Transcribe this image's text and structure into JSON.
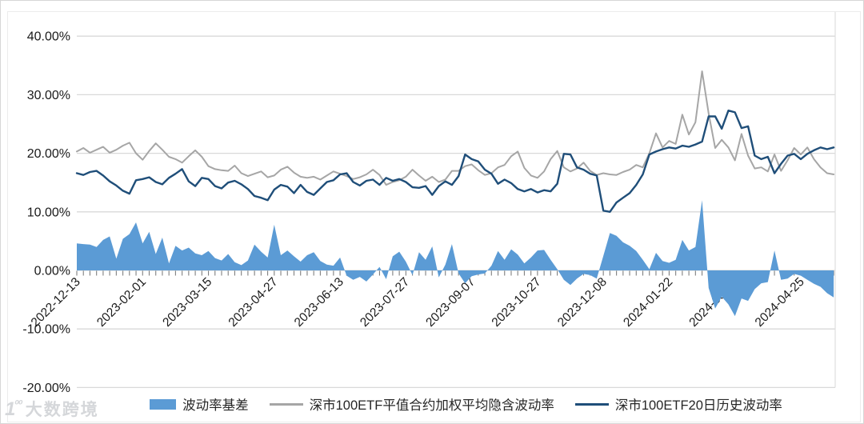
{
  "watermark": {
    "logo_text": "100",
    "brand": "大数跨境"
  },
  "chart_data": {
    "type": "combo",
    "title": "",
    "grid": "horizontal",
    "legend_position": "bottom",
    "y_unit": "%",
    "ylim": [
      -20,
      40
    ],
    "y_tick_labels": [
      "40.00%",
      "30.00%",
      "20.00%",
      "10.00%",
      "0.00%",
      "-10.00%",
      "-20.00%"
    ],
    "x_tick_labels": [
      "2022-12-13",
      "2023-02-01",
      "2023-03-15",
      "2023-04-27",
      "2023-06-13",
      "2023-07-27",
      "2023-09-07",
      "2023-10-27",
      "2023-12-08",
      "2024-01-22",
      "2024-03-12",
      "2024-04-25"
    ],
    "x_label_interval_trading_days": 30,
    "sample_interval_trading_days": 3,
    "series": [
      {
        "name": "波动率基差",
        "type": "area",
        "color": "#5B9BD5",
        "values": [
          4.6,
          4.5,
          4.4,
          4.0,
          5.2,
          5.8,
          2.0,
          5.4,
          6.2,
          8.2,
          4.6,
          6.6,
          2.8,
          5.6,
          1.2,
          4.2,
          3.4,
          3.9,
          2.9,
          2.6,
          3.3,
          2.1,
          1.7,
          2.8,
          1.4,
          0.9,
          1.7,
          4.4,
          3.2,
          2.2,
          7.8,
          2.6,
          3.4,
          2.4,
          1.5,
          2.6,
          3.1,
          1.6,
          1.0,
          0.8,
          2.2,
          -0.9,
          -1.6,
          -1.1,
          -1.9,
          -0.7,
          0.6,
          -1.5,
          2.4,
          3.2,
          1.5,
          -0.8,
          3.1,
          1.8,
          4.1,
          -1.2,
          1.0,
          4.5,
          -0.5,
          -2.2,
          -1.0,
          -0.7,
          -0.5,
          0.8,
          3.3,
          1.8,
          3.6,
          2.7,
          1.2,
          2.2,
          3.4,
          3.5,
          1.8,
          0.2,
          -1.6,
          -2.5,
          -1.4,
          -0.6,
          -0.8,
          -1.4,
          2.5,
          6.4,
          5.9,
          4.8,
          4.2,
          3.3,
          1.8,
          0.2,
          3.0,
          1.6,
          1.3,
          1.8,
          5.2,
          3.4,
          4.0,
          12.0,
          -3.0,
          -6.5,
          -4.5,
          -5.8,
          -7.8,
          -4.8,
          -5.2,
          -3.2,
          -2.2,
          -2.0,
          3.4,
          -1.6,
          -1.4,
          -0.6,
          -0.9,
          -1.6,
          -2.3,
          -2.8,
          -3.9,
          -4.6
        ]
      },
      {
        "name": "深市100ETF平值合约加权平均隐含波动率",
        "type": "line",
        "color": "#A6A6A6",
        "values": [
          20.3,
          20.9,
          20.1,
          20.6,
          21.1,
          20.1,
          20.6,
          21.3,
          21.8,
          20.0,
          18.9,
          20.4,
          21.7,
          20.6,
          19.4,
          19.0,
          18.4,
          19.5,
          20.5,
          19.4,
          17.8,
          17.3,
          17.1,
          17.0,
          17.9,
          16.6,
          16.1,
          16.5,
          16.9,
          15.9,
          16.2,
          17.2,
          17.7,
          16.7,
          16.0,
          15.8,
          16.0,
          15.5,
          16.2,
          16.9,
          16.5,
          16.1,
          15.6,
          15.9,
          16.4,
          17.2,
          16.3,
          14.6,
          15.1,
          15.4,
          16.0,
          17.2,
          16.2,
          15.3,
          16.0,
          15.1,
          15.5,
          17.0,
          17.0,
          17.8,
          18.1,
          17.1,
          16.3,
          16.6,
          17.6,
          18.0,
          19.5,
          20.3,
          17.5,
          16.2,
          15.8,
          16.9,
          19.0,
          20.4,
          17.6,
          16.9,
          17.4,
          18.4,
          17.0,
          16.3,
          16.6,
          16.4,
          16.3,
          16.8,
          17.2,
          18.0,
          17.6,
          20.0,
          23.4,
          21.0,
          22.1,
          21.6,
          26.6,
          23.2,
          25.3,
          34.0,
          26.8,
          20.9,
          22.3,
          21.0,
          18.8,
          23.3,
          19.6,
          17.4,
          17.6,
          16.9,
          19.8,
          17.0,
          18.8,
          20.9,
          19.8,
          21.0,
          19.0,
          17.6,
          16.6,
          16.4
        ]
      },
      {
        "name": "深市100ETF20日历史波动率",
        "type": "line",
        "color": "#1F4E79",
        "values": [
          16.6,
          16.3,
          16.8,
          17.0,
          16.2,
          15.2,
          14.5,
          13.6,
          13.1,
          15.4,
          15.6,
          15.9,
          15.1,
          14.7,
          15.8,
          16.5,
          17.3,
          15.2,
          14.4,
          15.8,
          15.6,
          14.4,
          14.0,
          15.0,
          15.3,
          14.7,
          13.9,
          12.7,
          12.4,
          12.0,
          13.8,
          14.6,
          14.3,
          13.2,
          14.6,
          13.4,
          12.9,
          14.0,
          15.1,
          15.4,
          16.4,
          16.6,
          15.1,
          14.5,
          15.3,
          15.5,
          14.6,
          15.8,
          15.3,
          15.6,
          15.1,
          14.2,
          14.1,
          14.4,
          12.9,
          14.4,
          15.2,
          14.6,
          16.1,
          19.8,
          19.0,
          18.6,
          17.2,
          16.5,
          14.8,
          15.5,
          14.9,
          13.9,
          13.5,
          13.9,
          13.3,
          13.7,
          13.5,
          14.8,
          19.9,
          19.8,
          17.6,
          17.2,
          16.5,
          16.2,
          10.2,
          10.0,
          11.6,
          12.4,
          13.2,
          14.6,
          16.4,
          19.8,
          20.3,
          20.7,
          21.0,
          20.8,
          21.3,
          21.1,
          21.5,
          22.0,
          26.3,
          26.3,
          24.2,
          27.3,
          27.0,
          24.3,
          24.6,
          19.6,
          19.0,
          19.4,
          16.6,
          18.2,
          19.6,
          19.9,
          19.0,
          19.9,
          20.5,
          21.0,
          20.7,
          21.0
        ]
      }
    ]
  }
}
